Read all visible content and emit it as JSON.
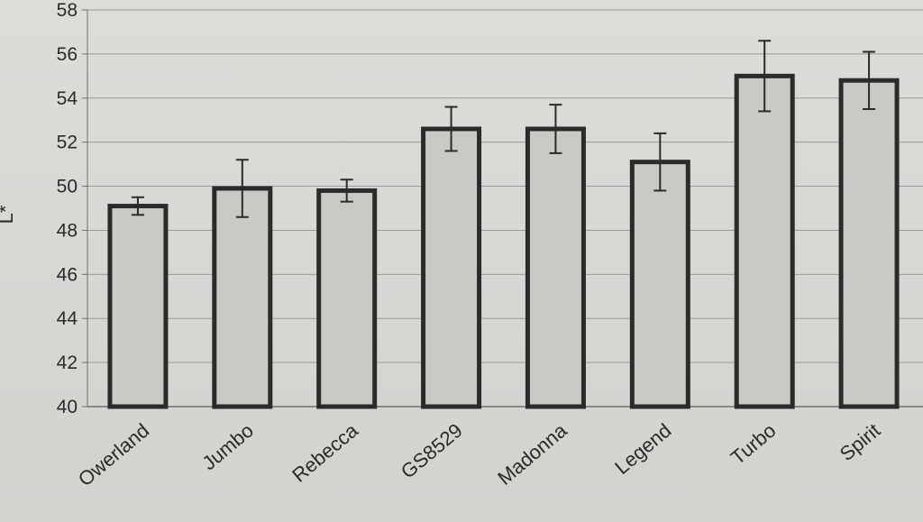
{
  "chart_data": {
    "type": "bar",
    "title": "",
    "xlabel": "",
    "ylabel": "L*",
    "ylim": [
      40,
      58
    ],
    "y_ticks": [
      40,
      42,
      44,
      46,
      48,
      50,
      52,
      54,
      56,
      58
    ],
    "grid": true,
    "categories": [
      "Owerland",
      "Jumbo",
      "Rebecca",
      "GS8529",
      "Madonna",
      "Legend",
      "Turbo",
      "Spirit"
    ],
    "values": [
      49.1,
      49.9,
      49.8,
      52.6,
      52.6,
      51.1,
      55.0,
      54.8
    ],
    "error_bars": [
      0.4,
      1.3,
      0.5,
      1.0,
      1.1,
      1.3,
      1.6,
      1.3
    ],
    "colors": {
      "bar_fill": "#c9c9c6",
      "bar_stroke": "#2b2b2b",
      "grid": "#9a9a98",
      "text": "#2a2a2a"
    }
  }
}
